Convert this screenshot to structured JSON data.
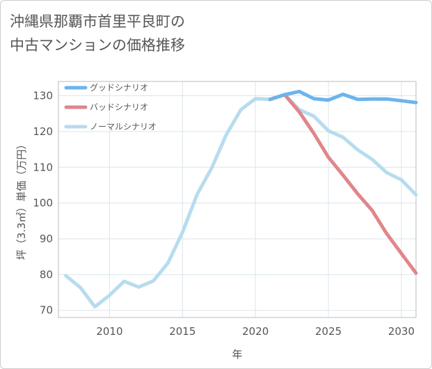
{
  "title": {
    "line1": "沖縄県那覇市首里平良町の",
    "line2": "中古マンションの価格推移"
  },
  "chart_data": {
    "type": "line",
    "xlabel": "年",
    "ylabel": "坪（3.3㎡）単価（万円）",
    "xlim": [
      2006.5,
      2031
    ],
    "ylim": [
      68,
      134
    ],
    "x_ticks": [
      "2010",
      "2015",
      "2020",
      "2025",
      "2030"
    ],
    "y_ticks": [
      "70",
      "80",
      "90",
      "100",
      "110",
      "120",
      "130"
    ],
    "grid": true,
    "legend_position": "top-left",
    "series": [
      {
        "name": "グッドシナリオ",
        "color": "#6cb4ec",
        "points": [
          [
            2021,
            129
          ],
          [
            2022,
            130.3
          ],
          [
            2023,
            131.2
          ],
          [
            2024,
            129.2
          ],
          [
            2025,
            128.8
          ],
          [
            2026,
            130.4
          ],
          [
            2027,
            129
          ],
          [
            2028,
            129.1
          ],
          [
            2029,
            129.1
          ],
          [
            2030,
            128.6
          ],
          [
            2031,
            128.1
          ]
        ]
      },
      {
        "name": "バッドシナリオ",
        "color": "#e0868b",
        "points": [
          [
            2021,
            129
          ],
          [
            2022,
            130.3
          ],
          [
            2023,
            125.5
          ],
          [
            2024,
            119.5
          ],
          [
            2025,
            112.8
          ],
          [
            2026,
            107.8
          ],
          [
            2027,
            102.6
          ],
          [
            2028,
            97.9
          ],
          [
            2029,
            91.4
          ],
          [
            2030,
            85.9
          ],
          [
            2031,
            80.4
          ]
        ]
      },
      {
        "name": "ノーマルシナリオ",
        "color": "#b7dcee",
        "points": [
          [
            2007,
            79.7
          ],
          [
            2008,
            76.4
          ],
          [
            2009,
            71
          ],
          [
            2010,
            74.2
          ],
          [
            2011,
            78.1
          ],
          [
            2012,
            76.5
          ],
          [
            2013,
            78.2
          ],
          [
            2014,
            83.2
          ],
          [
            2015,
            91.8
          ],
          [
            2016,
            102.4
          ],
          [
            2017,
            109.8
          ],
          [
            2018,
            119.1
          ],
          [
            2019,
            126.1
          ],
          [
            2020,
            129.2
          ],
          [
            2021,
            129
          ],
          [
            2022,
            130.3
          ],
          [
            2023,
            126.1
          ],
          [
            2024,
            124.3
          ],
          [
            2025,
            120.2
          ],
          [
            2026,
            118.4
          ],
          [
            2027,
            114.9
          ],
          [
            2028,
            112.2
          ],
          [
            2029,
            108.5
          ],
          [
            2030,
            106.5
          ],
          [
            2031,
            102.3
          ]
        ]
      }
    ]
  }
}
